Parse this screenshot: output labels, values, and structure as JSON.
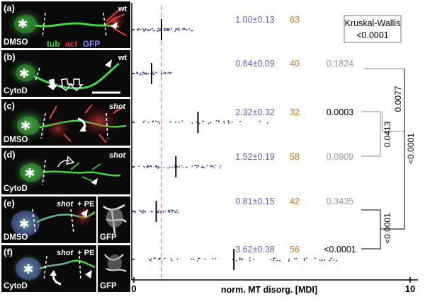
{
  "panels": [
    {
      "label": "(a)",
      "treatment": "DMSO",
      "genotype": "wt",
      "extra": ""
    },
    {
      "label": "(b)",
      "treatment": "CytoD",
      "genotype": "wt",
      "extra": ""
    },
    {
      "label": "(c)",
      "treatment": "DMSO",
      "genotype": "shot",
      "extra": ""
    },
    {
      "label": "(d)",
      "treatment": "CytoD",
      "genotype": "shot",
      "extra": ""
    },
    {
      "label": "(e)",
      "treatment": "DMSO",
      "genotype": "shot",
      "extra": "+ PE"
    },
    {
      "label": "(f)",
      "treatment": "CytoD",
      "genotype": "shot",
      "extra": "+ PE"
    }
  ],
  "legend": {
    "tub": "tub",
    "act": "act",
    "gfp": "GFP",
    "tub_color": "#39d139",
    "act_color": "#e23b3b",
    "gfp_color": "#8c8cf2"
  },
  "inset_label": "GFP",
  "stats_box": {
    "line1": "Kruskal-Wallis",
    "line2": "<0.0001"
  },
  "brackets": [
    "0.0413",
    "0.0077",
    "<0.0001",
    "<0.0001"
  ],
  "colors": {
    "mean_text": "#5a5ad6",
    "count_text": "#e0701e",
    "pval_gray": "#9a9a9a",
    "ref_line": "#f08a8a"
  },
  "chart_data": {
    "type": "scatter",
    "xlabel": "norm. MT disorg. [MDI]",
    "xlim": [
      0,
      10
    ],
    "xticks": [
      "0",
      "10"
    ],
    "reference_line_x": 1,
    "rows": [
      {
        "mean": 1.0,
        "label": "1.00±0.13",
        "n": "63",
        "p": "",
        "p_gray": false
      },
      {
        "mean": 0.64,
        "label": "0.64±0.09",
        "n": "40",
        "p": "0.1824",
        "p_gray": true
      },
      {
        "mean": 2.32,
        "label": "2.32±0.32",
        "n": "32",
        "p": "0.0003",
        "p_gray": false
      },
      {
        "mean": 1.52,
        "label": "1.52±0.19",
        "n": "58",
        "p": "0.0909",
        "p_gray": true
      },
      {
        "mean": 0.81,
        "label": "0.81±0.15",
        "n": "42",
        "p": "0.3435",
        "p_gray": true
      },
      {
        "mean": 3.62,
        "label": "3.62±0.38",
        "n": "56",
        "p": "<0.0001",
        "p_gray": false
      }
    ]
  }
}
